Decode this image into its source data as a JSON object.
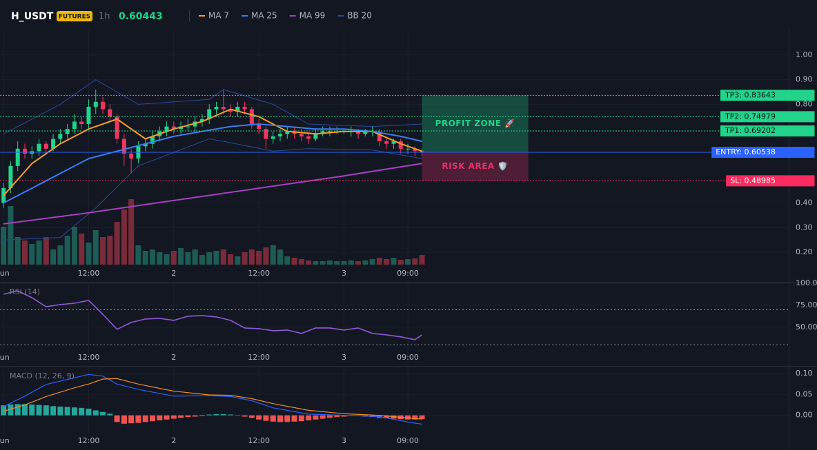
{
  "header": {
    "symbol": "H_USDT",
    "badge": "FUTURES",
    "interval": "1h",
    "price": "0.60443"
  },
  "chart_data": [
    {
      "type": "candlestick",
      "x": [
        0,
        1,
        2,
        3,
        4,
        5,
        6,
        7,
        8,
        9,
        10,
        11,
        12,
        13,
        14,
        15,
        16,
        17,
        18,
        19,
        20,
        21,
        22,
        23,
        24,
        25,
        26,
        27,
        28,
        29,
        30,
        31,
        32,
        33,
        34,
        35,
        36,
        37,
        38,
        39,
        40,
        41,
        42,
        43,
        44,
        45,
        46,
        47,
        48,
        49,
        50,
        51,
        52,
        53,
        54,
        55,
        56,
        57,
        58,
        59
      ],
      "open": [
        0.4,
        0.46,
        0.55,
        0.62,
        0.6,
        0.61,
        0.64,
        0.62,
        0.66,
        0.68,
        0.7,
        0.73,
        0.72,
        0.79,
        0.81,
        0.78,
        0.75,
        0.66,
        0.6,
        0.58,
        0.63,
        0.64,
        0.67,
        0.69,
        0.71,
        0.7,
        0.71,
        0.71,
        0.73,
        0.74,
        0.78,
        0.79,
        0.78,
        0.77,
        0.79,
        0.78,
        0.72,
        0.7,
        0.66,
        0.67,
        0.68,
        0.69,
        0.68,
        0.67,
        0.66,
        0.68,
        0.69,
        0.69,
        0.69,
        0.69,
        0.69,
        0.68,
        0.69,
        0.69,
        0.65,
        0.64,
        0.65,
        0.62,
        0.62,
        0.61
      ],
      "high": [
        0.48,
        0.57,
        0.65,
        0.64,
        0.63,
        0.66,
        0.65,
        0.68,
        0.7,
        0.72,
        0.76,
        0.75,
        0.82,
        0.86,
        0.83,
        0.8,
        0.76,
        0.68,
        0.62,
        0.65,
        0.66,
        0.69,
        0.71,
        0.73,
        0.73,
        0.73,
        0.74,
        0.75,
        0.76,
        0.8,
        0.81,
        0.86,
        0.8,
        0.81,
        0.81,
        0.79,
        0.74,
        0.71,
        0.69,
        0.7,
        0.71,
        0.71,
        0.7,
        0.69,
        0.7,
        0.71,
        0.71,
        0.71,
        0.7,
        0.71,
        0.7,
        0.7,
        0.71,
        0.7,
        0.66,
        0.66,
        0.66,
        0.64,
        0.63,
        0.62
      ],
      "low": [
        0.38,
        0.44,
        0.53,
        0.58,
        0.58,
        0.59,
        0.6,
        0.61,
        0.64,
        0.66,
        0.68,
        0.7,
        0.7,
        0.76,
        0.76,
        0.73,
        0.64,
        0.55,
        0.52,
        0.56,
        0.61,
        0.62,
        0.65,
        0.67,
        0.68,
        0.68,
        0.69,
        0.69,
        0.71,
        0.72,
        0.76,
        0.76,
        0.75,
        0.75,
        0.76,
        0.7,
        0.68,
        0.62,
        0.64,
        0.65,
        0.66,
        0.66,
        0.65,
        0.64,
        0.65,
        0.67,
        0.67,
        0.68,
        0.68,
        0.67,
        0.66,
        0.67,
        0.67,
        0.63,
        0.62,
        0.62,
        0.6,
        0.6,
        0.59,
        0.59
      ],
      "close": [
        0.46,
        0.55,
        0.62,
        0.6,
        0.61,
        0.64,
        0.62,
        0.66,
        0.68,
        0.7,
        0.73,
        0.72,
        0.79,
        0.81,
        0.78,
        0.75,
        0.66,
        0.6,
        0.58,
        0.63,
        0.64,
        0.67,
        0.69,
        0.71,
        0.7,
        0.71,
        0.71,
        0.73,
        0.74,
        0.78,
        0.79,
        0.78,
        0.77,
        0.79,
        0.78,
        0.72,
        0.7,
        0.66,
        0.67,
        0.68,
        0.69,
        0.68,
        0.67,
        0.66,
        0.68,
        0.69,
        0.69,
        0.69,
        0.69,
        0.69,
        0.68,
        0.69,
        0.69,
        0.65,
        0.64,
        0.65,
        0.62,
        0.62,
        0.61,
        0.60443
      ],
      "volume": [
        55,
        85,
        40,
        35,
        30,
        35,
        40,
        22,
        28,
        42,
        55,
        45,
        32,
        50,
        40,
        42,
        62,
        80,
        95,
        28,
        20,
        22,
        18,
        15,
        20,
        24,
        18,
        22,
        14,
        18,
        20,
        22,
        15,
        12,
        18,
        22,
        20,
        25,
        28,
        22,
        12,
        10,
        8,
        6,
        5,
        5,
        6,
        5,
        5,
        6,
        5,
        6,
        8,
        10,
        8,
        10,
        7,
        8,
        9,
        14
      ],
      "vlim": [
        0,
        100
      ],
      "up_color": "#22d38b",
      "down_color": "#f2365f",
      "volume_up_color": "#1d5c55",
      "volume_down_color": "#7a2b3a",
      "series": [
        {
          "name": "MA 7",
          "color": "#f59e2a",
          "x": [
            0,
            4,
            8,
            12,
            16,
            20,
            24,
            28,
            32,
            36,
            40,
            44,
            48,
            52,
            56,
            59
          ],
          "values": [
            0.43,
            0.56,
            0.64,
            0.7,
            0.74,
            0.66,
            0.7,
            0.73,
            0.78,
            0.75,
            0.69,
            0.68,
            0.69,
            0.69,
            0.64,
            0.61
          ]
        },
        {
          "name": "MA 25",
          "color": "#3b7ef0",
          "x": [
            0,
            4,
            8,
            12,
            16,
            20,
            24,
            28,
            32,
            36,
            40,
            44,
            48,
            52,
            56,
            59
          ],
          "values": [
            0.4,
            0.46,
            0.52,
            0.58,
            0.61,
            0.64,
            0.67,
            0.69,
            0.71,
            0.72,
            0.71,
            0.7,
            0.7,
            0.69,
            0.67,
            0.65
          ]
        },
        {
          "name": "MA 99",
          "color": "#a73fc2",
          "x": [
            0,
            12,
            24,
            36,
            48,
            59
          ],
          "values": [
            0.315,
            0.36,
            0.41,
            0.46,
            0.51,
            0.56
          ]
        },
        {
          "name": "BB 20",
          "color": "#2c4a9a",
          "x": [
            0,
            8,
            13,
            19,
            29,
            31,
            38,
            43,
            52,
            59
          ],
          "upper": [
            0.68,
            0.8,
            0.9,
            0.8,
            0.82,
            0.86,
            0.8,
            0.72,
            0.71,
            0.72
          ],
          "lower": [
            0.25,
            0.26,
            0.38,
            0.55,
            0.66,
            0.65,
            0.61,
            0.62,
            0.615,
            0.58
          ]
        }
      ],
      "levels": [
        {
          "value": 0.83643,
          "label": "TP3: 0.83643",
          "axis_label": "0.84",
          "color": "#22d38b",
          "text_color": "#0b0e14",
          "style": "dotted"
        },
        {
          "value": 0.74979,
          "label": "TP2: 0.74979",
          "axis_label": "0.75",
          "color": "#22d38b",
          "text_color": "#0b0e14",
          "style": "dotted"
        },
        {
          "value": 0.69202,
          "label": "TP1: 0.69202",
          "axis_label": "0.69",
          "color": "#22d38b",
          "text_color": "#0b0e14",
          "style": "dotted"
        },
        {
          "value": 0.60538,
          "label": "ENTRY: 0.60538",
          "axis_label": "0.61",
          "color": "#2962ff",
          "text_color": "#ffffff",
          "style": "solid"
        },
        {
          "value": 0.48985,
          "label": "SL: 0.48985",
          "axis_label": "0.49",
          "color": "#ff2a5f",
          "text_color": "#ffffff",
          "style": "dotted"
        }
      ],
      "zones": [
        {
          "label": "PROFIT ZONE 🚀",
          "color": "#22d38b"
        },
        {
          "label": "RISK AREA 🛡️",
          "color": "#e8306a"
        }
      ],
      "xlim": [
        -0.5,
        110.7
      ],
      "ylim": [
        0.15,
        1.1
      ],
      "yticks": [
        {
          "value": 1.0,
          "label": "1.00"
        },
        {
          "value": 0.9,
          "label": "0.90"
        },
        {
          "value": 0.8,
          "label": "0.80"
        },
        {
          "value": 0.4,
          "label": "0.40"
        },
        {
          "value": 0.3,
          "label": "0.30"
        },
        {
          "value": 0.2,
          "label": "0.20"
        }
      ],
      "xticks": [
        {
          "value": 0,
          "label": "Jun"
        },
        {
          "value": 12,
          "label": "12:00"
        },
        {
          "value": 24,
          "label": "2"
        },
        {
          "value": 36,
          "label": "12:00"
        },
        {
          "value": 48,
          "label": "3"
        },
        {
          "value": 57,
          "label": "09:00"
        }
      ],
      "grid": true
    },
    {
      "type": "line",
      "title": "RSI (14)",
      "color": "#8e5ad6",
      "x": [
        0,
        2,
        4,
        6,
        8,
        10,
        12,
        14,
        16,
        18,
        20,
        22,
        24,
        26,
        28,
        30,
        32,
        34,
        36,
        38,
        40,
        42,
        44,
        46,
        48,
        50,
        52,
        54,
        56,
        58,
        59
      ],
      "values": [
        87.5,
        91.4,
        83.6,
        73.4,
        75.8,
        77.3,
        80.5,
        64.8,
        47.7,
        55.5,
        59.4,
        60.2,
        57.8,
        62.5,
        63.3,
        61.7,
        57.8,
        49.2,
        48.4,
        46.1,
        46.9,
        43.0,
        49.2,
        49.2,
        46.9,
        49.2,
        43.0,
        41.4,
        39.1,
        35.9,
        41.4
      ],
      "hlines": [
        70,
        30
      ],
      "xlim": [
        -0.5,
        110.7
      ],
      "ylim": [
        10,
        100
      ],
      "yticks": [
        {
          "value": 100,
          "label": "100.00"
        },
        {
          "value": 75,
          "label": "75.00"
        },
        {
          "value": 50,
          "label": "50.00"
        }
      ],
      "xticks": [
        {
          "value": 0,
          "label": "Jun"
        },
        {
          "value": 12,
          "label": "12:00"
        },
        {
          "value": 24,
          "label": "2"
        },
        {
          "value": 36,
          "label": "12:00"
        },
        {
          "value": 48,
          "label": "3"
        },
        {
          "value": 57,
          "label": "09:00"
        }
      ],
      "grid": true
    },
    {
      "type": "macd",
      "title": "MACD (12, 26, 9)",
      "x": [
        0,
        1,
        2,
        3,
        4,
        5,
        6,
        7,
        8,
        9,
        10,
        11,
        12,
        13,
        14,
        15,
        16,
        17,
        18,
        19,
        20,
        21,
        22,
        23,
        24,
        25,
        26,
        27,
        28,
        29,
        30,
        31,
        32,
        33,
        34,
        35,
        36,
        37,
        38,
        39,
        40,
        41,
        42,
        43,
        44,
        45,
        46,
        47,
        48,
        49,
        50,
        51,
        52,
        53,
        54,
        55,
        56,
        57,
        58,
        59
      ],
      "histogram": [
        0.024,
        0.026,
        0.027,
        0.027,
        0.026,
        0.025,
        0.024,
        0.022,
        0.021,
        0.02,
        0.019,
        0.018,
        0.016,
        0.012,
        0.008,
        0.004,
        -0.016,
        -0.02,
        -0.019,
        -0.018,
        -0.016,
        -0.014,
        -0.012,
        -0.01,
        -0.008,
        -0.006,
        -0.004,
        -0.003,
        -0.002,
        0.002,
        0.003,
        0.003,
        0.002,
        0.001,
        -0.003,
        -0.006,
        -0.01,
        -0.013,
        -0.015,
        -0.016,
        -0.016,
        -0.015,
        -0.014,
        -0.012,
        -0.01,
        -0.008,
        -0.006,
        -0.004,
        -0.003,
        -0.002,
        -0.002,
        -0.003,
        -0.004,
        -0.006,
        -0.007,
        -0.008,
        -0.009,
        -0.01,
        -0.01,
        -0.009
      ],
      "hist_up_color": "#26a69a",
      "hist_down_color": "#ef5350",
      "series": [
        {
          "color": "#2962ff",
          "x": [
            0,
            3,
            6,
            10,
            12,
            14,
            16,
            19,
            24,
            29,
            32,
            35,
            38,
            43,
            48,
            53,
            57,
            59
          ],
          "values": [
            0.021,
            0.046,
            0.074,
            0.09,
            0.098,
            0.094,
            0.075,
            0.062,
            0.046,
            0.047,
            0.045,
            0.035,
            0.018,
            0.003,
            0.0,
            -0.003,
            -0.016,
            -0.021
          ]
        },
        {
          "color": "#f08c2a",
          "x": [
            0,
            3,
            6,
            10,
            12,
            14,
            16,
            19,
            24,
            29,
            32,
            35,
            38,
            43,
            48,
            53,
            57,
            59
          ],
          "values": [
            0.01,
            0.025,
            0.045,
            0.066,
            0.075,
            0.087,
            0.088,
            0.075,
            0.058,
            0.049,
            0.048,
            0.04,
            0.028,
            0.012,
            0.004,
            0.0,
            -0.006,
            -0.009
          ]
        }
      ],
      "xlim": [
        -0.5,
        110.7
      ],
      "ylim": [
        -0.045,
        0.115
      ],
      "yticks": [
        {
          "value": 0.1,
          "label": "0.10"
        },
        {
          "value": 0.05,
          "label": "0.05"
        },
        {
          "value": 0.0,
          "label": "0.00"
        }
      ],
      "xticks": [
        {
          "value": 0,
          "label": "Jun"
        },
        {
          "value": 12,
          "label": "12:00"
        },
        {
          "value": 24,
          "label": "2"
        },
        {
          "value": 36,
          "label": "12:00"
        },
        {
          "value": 48,
          "label": "3"
        },
        {
          "value": 57,
          "label": "09:00"
        }
      ],
      "grid": true
    }
  ]
}
